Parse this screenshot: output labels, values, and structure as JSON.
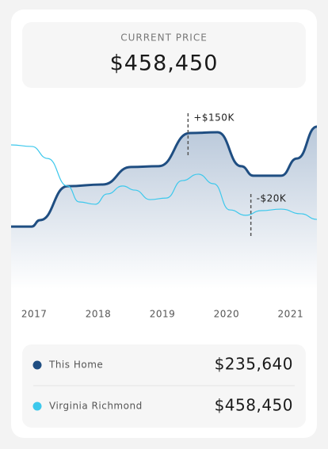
{
  "header": {
    "label": "CURRENT PRICE",
    "price": "$458,450"
  },
  "chart_data": {
    "type": "line",
    "xlim": [
      2016.64,
      2021.41
    ],
    "xticks": [
      2017,
      2018,
      2019,
      2020,
      2021
    ],
    "ylim": [
      0,
      100
    ],
    "series": [
      {
        "name": "This Home",
        "color": "#1f4e82",
        "price": "$235,640",
        "fill": true,
        "x": [
          2016.64,
          2016.96,
          2017.09,
          2017.52,
          2018.07,
          2018.51,
          2018.94,
          2019.43,
          2019.86,
          2020.23,
          2020.42,
          2020.85,
          2021.1,
          2021.41
        ],
        "values": [
          32.2,
          32.2,
          35.5,
          53,
          53.9,
          62.9,
          63.3,
          80.4,
          80.8,
          63.3,
          58.4,
          58.4,
          67.3,
          83.7
        ]
      },
      {
        "name": "Virginia Richmond",
        "color": "#3cc8ec",
        "price": "$458,450",
        "fill": false,
        "x": [
          2016.64,
          2016.96,
          2017.21,
          2017.52,
          2017.7,
          2017.95,
          2018.14,
          2018.38,
          2018.57,
          2018.81,
          2019.06,
          2019.31,
          2019.56,
          2019.8,
          2020.05,
          2020.3,
          2020.54,
          2020.85,
          2021.16,
          2021.41
        ],
        "values": [
          74.3,
          73.5,
          67.3,
          53.1,
          44.9,
          43.7,
          49,
          53.1,
          51,
          46.1,
          46.9,
          55.9,
          59.2,
          54.3,
          40.8,
          38,
          40.4,
          41.2,
          38.8,
          35.9
        ]
      }
    ],
    "annotations": [
      {
        "text": "+$150K",
        "x": 2019.4,
        "y": 80.4
      },
      {
        "text": "-$20K",
        "x": 2020.38,
        "y": 38.8
      }
    ]
  }
}
